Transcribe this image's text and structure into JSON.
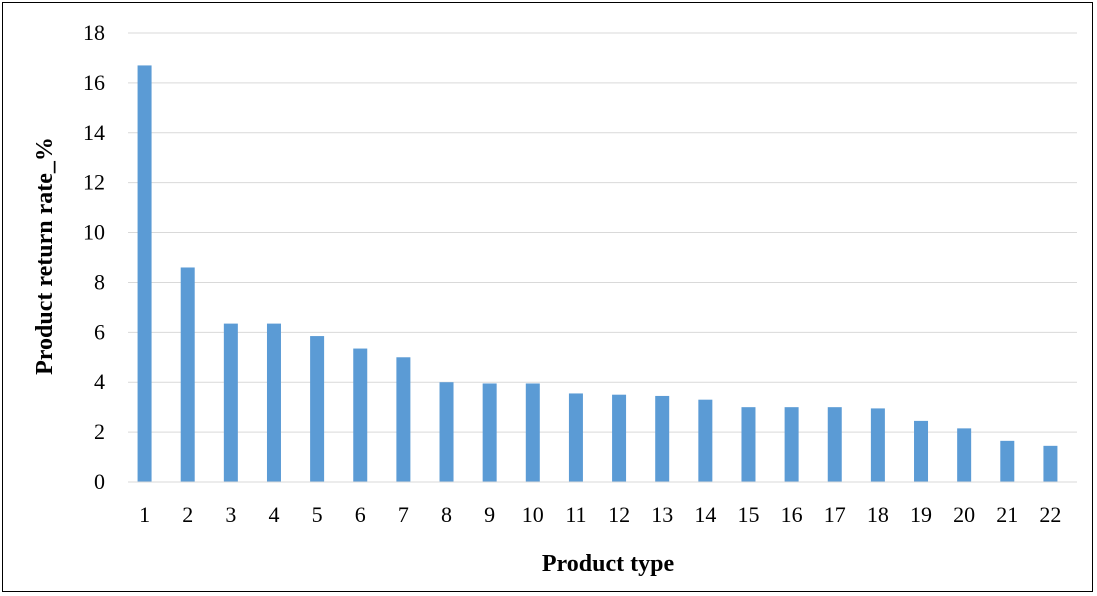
{
  "chart_data": {
    "type": "bar",
    "title": "",
    "xlabel": "Product type",
    "ylabel": "Product return rate_%",
    "categories": [
      "1",
      "2",
      "3",
      "4",
      "5",
      "6",
      "7",
      "8",
      "9",
      "10",
      "11",
      "12",
      "13",
      "14",
      "15",
      "16",
      "17",
      "18",
      "19",
      "20",
      "21",
      "22"
    ],
    "values": [
      16.7,
      8.6,
      6.35,
      6.35,
      5.85,
      5.35,
      5.0,
      4.0,
      3.95,
      3.95,
      3.55,
      3.5,
      3.45,
      3.3,
      3.0,
      3.0,
      3.0,
      2.95,
      2.45,
      2.15,
      1.65,
      1.45
    ],
    "ylim": [
      0,
      18
    ],
    "yticks": [
      "0",
      "2",
      "4",
      "6",
      "8",
      "10",
      "12",
      "14",
      "16",
      "18"
    ],
    "grid": true,
    "legend": "none",
    "bar_color": "#5B9BD5",
    "grid_color": "#D9D9D9"
  }
}
